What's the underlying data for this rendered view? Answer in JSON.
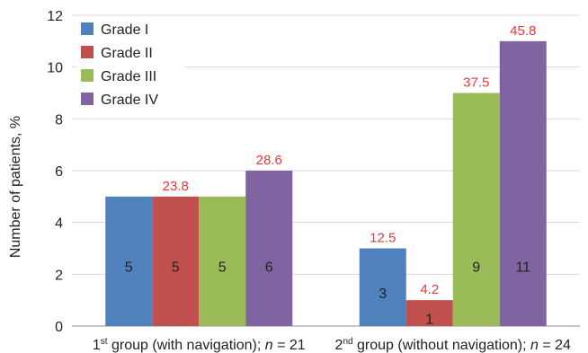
{
  "chart_data": {
    "type": "bar",
    "ylabel": "Number of patients, %",
    "ylim": [
      0,
      12
    ],
    "yticks": [
      0,
      2,
      4,
      6,
      8,
      10,
      12
    ],
    "grid": "horizontal",
    "legend_position": "top-left",
    "categories": [
      {
        "main": "1",
        "sup": "st",
        "text": " group (with navigation); ",
        "n_symbol": "n",
        "n_eq": " = 21"
      },
      {
        "main": "2",
        "sup": "nd",
        "text": " group (without navigation); ",
        "n_symbol": "n",
        "n_eq": " = 24"
      }
    ],
    "series": [
      {
        "name": "Grade I",
        "color": "#4f81bd",
        "values": [
          5,
          3
        ],
        "percents": [
          "",
          "12.5"
        ]
      },
      {
        "name": "Grade II",
        "color": "#c0504d",
        "values": [
          5,
          1
        ],
        "percents": [
          "23.8",
          "4.2"
        ]
      },
      {
        "name": "Grade III",
        "color": "#9bbb59",
        "values": [
          5,
          9
        ],
        "percents": [
          "",
          "37.5"
        ]
      },
      {
        "name": "Grade IV",
        "color": "#8064a2",
        "values": [
          6,
          11
        ],
        "percents": [
          "28.6",
          "45.8"
        ]
      }
    ],
    "percent_label_color": "#e8383b"
  }
}
